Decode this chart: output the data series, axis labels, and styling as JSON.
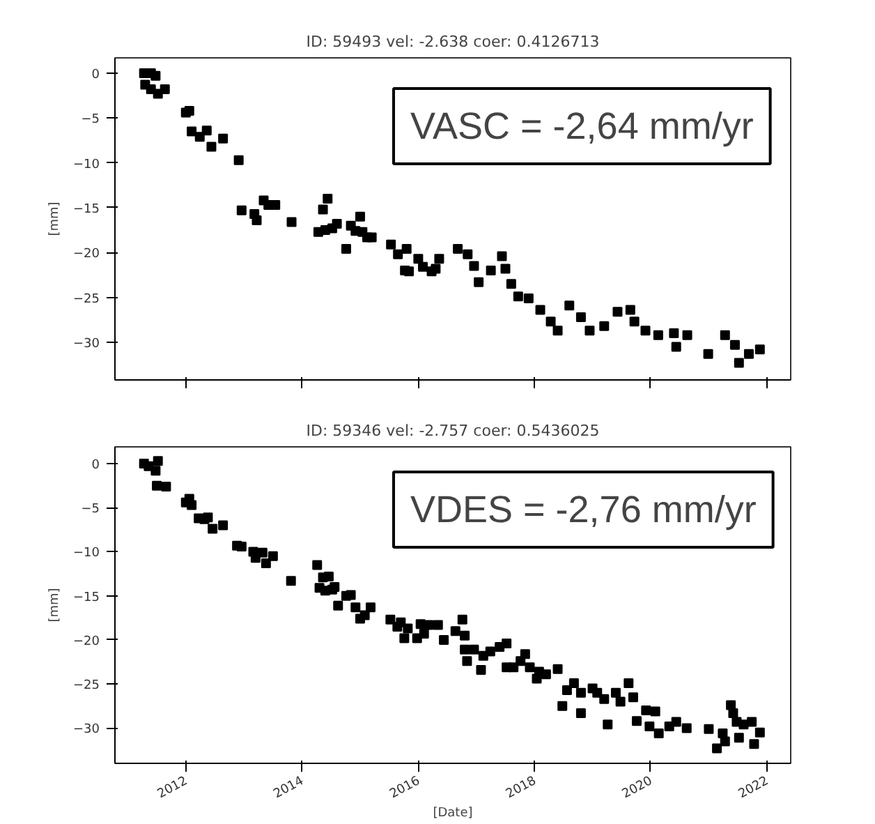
{
  "chart_data": [
    {
      "type": "scatter",
      "title": "ID: 59493 vel: -2.638 coer: 0.4126713",
      "ylabel": "[mm]",
      "annotations": [
        "VASC = -2,64 mm/yr"
      ],
      "marker": "square",
      "color": "#000000",
      "grid": false,
      "tick_labels": "y",
      "xlim": [
        2010.78,
        2022.41
      ],
      "ylim": [
        -34.2,
        1.7
      ],
      "xticks": [
        2012,
        2014,
        2016,
        2018,
        2020,
        2022
      ],
      "yticks": [
        0,
        -5,
        -10,
        -15,
        -20,
        -25,
        -30
      ],
      "x": [
        2011.28,
        2011.4,
        2011.48,
        2011.3,
        2011.4,
        2011.52,
        2011.64,
        2012.0,
        2012.06,
        2012.1,
        2012.24,
        2012.36,
        2012.44,
        2012.64,
        2012.91,
        2012.96,
        2013.18,
        2013.22,
        2013.34,
        2013.42,
        2013.54,
        2013.82,
        2014.28,
        2014.36,
        2014.44,
        2014.4,
        2014.52,
        2014.6,
        2014.76,
        2014.84,
        2014.92,
        2015.0,
        2015.04,
        2015.12,
        2015.2,
        2015.53,
        2015.65,
        2015.8,
        2015.77,
        2015.84,
        2016.0,
        2016.08,
        2016.23,
        2016.3,
        2016.36,
        2016.68,
        2016.85,
        2016.96,
        2017.04,
        2017.25,
        2017.44,
        2017.5,
        2017.6,
        2017.72,
        2017.9,
        2018.1,
        2018.28,
        2018.4,
        2018.6,
        2018.8,
        2018.95,
        2019.2,
        2019.43,
        2019.65,
        2019.72,
        2019.91,
        2020.13,
        2020.4,
        2020.44,
        2020.63,
        2020.99,
        2021.28,
        2021.45,
        2021.52,
        2021.69,
        2021.88
      ],
      "values": [
        0,
        0,
        -0.3,
        -1.3,
        -1.8,
        -2.3,
        -1.8,
        -4.4,
        -4.2,
        -6.5,
        -7.1,
        -6.4,
        -8.2,
        -7.3,
        -9.7,
        -15.3,
        -15.7,
        -16.4,
        -14.2,
        -14.7,
        -14.7,
        -16.6,
        -17.7,
        -15.2,
        -14.0,
        -17.5,
        -17.3,
        -16.8,
        -19.6,
        -17.0,
        -17.6,
        -16.0,
        -17.7,
        -18.3,
        -18.3,
        -19.1,
        -20.2,
        -19.6,
        -22.0,
        -22.1,
        -20.7,
        -21.6,
        -22.1,
        -21.8,
        -20.7,
        -19.6,
        -20.2,
        -21.5,
        -23.3,
        -22.0,
        -20.4,
        -21.8,
        -23.5,
        -24.9,
        -25.1,
        -26.4,
        -27.7,
        -28.7,
        -25.9,
        -27.2,
        -28.7,
        -28.2,
        -26.6,
        -26.4,
        -27.7,
        -28.7,
        -29.2,
        -29.0,
        -30.5,
        -29.2,
        -31.3,
        -29.2,
        -30.3,
        -32.3,
        -31.3,
        -30.8
      ]
    },
    {
      "type": "scatter",
      "title": "ID: 59346 vel: -2.757 coer: 0.5436025",
      "xlabel": "[Date]",
      "ylabel": "[mm]",
      "annotations": [
        "VDES = -2,76 mm/yr"
      ],
      "marker": "square",
      "color": "#000000",
      "grid": false,
      "xlim": [
        2010.78,
        2022.41
      ],
      "ylim": [
        -34.0,
        1.9
      ],
      "xticks": [
        2012,
        2014,
        2016,
        2018,
        2020,
        2022
      ],
      "yticks": [
        0,
        -5,
        -10,
        -15,
        -20,
        -25,
        -30
      ],
      "x": [
        2011.28,
        2011.36,
        2011.52,
        2011.48,
        2011.5,
        2011.66,
        2012.0,
        2012.06,
        2012.1,
        2012.22,
        2012.32,
        2012.38,
        2012.46,
        2012.64,
        2012.88,
        2012.96,
        2013.16,
        2013.2,
        2013.32,
        2013.38,
        2013.5,
        2013.81,
        2014.26,
        2014.3,
        2014.36,
        2014.46,
        2014.4,
        2014.52,
        2014.56,
        2014.62,
        2014.76,
        2014.84,
        2014.92,
        2015.0,
        2015.08,
        2015.18,
        2015.52,
        2015.64,
        2015.7,
        2015.76,
        2015.82,
        2015.98,
        2016.04,
        2016.1,
        2016.18,
        2016.34,
        2016.44,
        2016.64,
        2016.76,
        2016.8,
        2016.8,
        2016.84,
        2016.96,
        2017.08,
        2017.12,
        2017.24,
        2017.4,
        2017.52,
        2017.52,
        2017.64,
        2017.76,
        2017.84,
        2017.92,
        2018.04,
        2018.08,
        2018.2,
        2018.4,
        2018.48,
        2018.56,
        2018.68,
        2018.8,
        2018.8,
        2019.0,
        2019.08,
        2019.2,
        2019.26,
        2019.4,
        2019.48,
        2019.62,
        2019.7,
        2019.76,
        2019.92,
        2019.98,
        2020.08,
        2020.14,
        2020.32,
        2020.44,
        2020.62,
        2021.0,
        2021.14,
        2021.24,
        2021.28,
        2021.38,
        2021.42,
        2021.48,
        2021.52,
        2021.6,
        2021.74,
        2021.78,
        2021.88
      ],
      "values": [
        0,
        -0.3,
        0.3,
        -0.8,
        -2.5,
        -2.6,
        -4.4,
        -4.0,
        -4.7,
        -6.2,
        -6.3,
        -6.1,
        -7.4,
        -7.0,
        -9.3,
        -9.4,
        -10.0,
        -10.7,
        -10.1,
        -11.3,
        -10.5,
        -13.3,
        -11.5,
        -14.1,
        -12.9,
        -12.8,
        -14.4,
        -14.3,
        -14.0,
        -16.1,
        -15.0,
        -14.9,
        -16.3,
        -17.6,
        -17.2,
        -16.3,
        -17.7,
        -18.5,
        -18.0,
        -19.8,
        -18.7,
        -19.8,
        -18.2,
        -19.3,
        -18.3,
        -18.3,
        -20.0,
        -19.0,
        -17.7,
        -19.5,
        -21.1,
        -22.4,
        -21.1,
        -23.4,
        -21.8,
        -21.3,
        -20.8,
        -20.4,
        -23.1,
        -23.1,
        -22.4,
        -21.6,
        -23.1,
        -24.4,
        -23.6,
        -23.9,
        -23.3,
        -27.5,
        -25.7,
        -24.9,
        -28.3,
        -26.0,
        -25.5,
        -26.0,
        -26.7,
        -29.6,
        -26.0,
        -27.0,
        -24.9,
        -26.5,
        -29.2,
        -28.0,
        -29.8,
        -28.1,
        -30.6,
        -29.8,
        -29.3,
        -30.0,
        -30.1,
        -32.3,
        -30.6,
        -31.5,
        -27.4,
        -28.3,
        -29.3,
        -31.1,
        -29.6,
        -29.3,
        -31.8,
        -30.5
      ]
    }
  ]
}
